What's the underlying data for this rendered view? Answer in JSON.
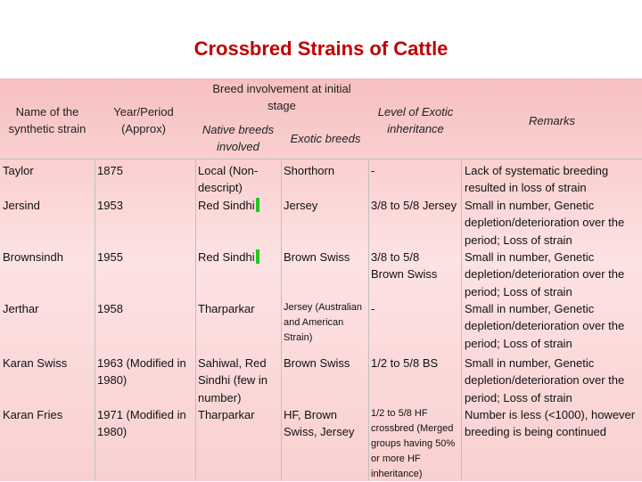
{
  "title": "Crossbred Strains of Cattle",
  "headers": {
    "name": "Name of the synthetic strain",
    "year": "Year/Period (Approx)",
    "breed_group": "Breed involvement at initial stage",
    "native": "Native breeds involved",
    "exotic": "Exotic breeds",
    "level": "Level of Exotic inheritance",
    "remarks": "Remarks"
  },
  "rows": [
    {
      "name": "Taylor",
      "year": "1875",
      "native": "Local (Non-descript)",
      "exotic": "Shorthorn",
      "level": "-",
      "remarks": "Lack of systematic breeding resulted in loss of strain"
    },
    {
      "name": "Jersind",
      "year": "1953",
      "native": "Red Sindhi",
      "exotic": "Jersey",
      "level": "3/8 to 5/8 Jersey",
      "remarks": "Small in number, Genetic depletion/deterioration over the period; Loss of strain"
    },
    {
      "name": "Brownsindh",
      "year": "1955",
      "native": "Red Sindhi",
      "exotic": "Brown Swiss",
      "level": "3/8 to 5/8 Brown Swiss",
      "remarks": "Small in number, Genetic depletion/deterioration over the period; Loss of strain"
    },
    {
      "name": "Jerthar",
      "year": "1958",
      "native": "Tharparkar",
      "exotic": "Jersey (Australian and American Strain)",
      "level": "-",
      "remarks": "Small in number, Genetic depletion/deterioration over the period; Loss of strain"
    },
    {
      "name": "Karan Swiss",
      "year": "1963 (Modified in 1980)",
      "native": "Sahiwal, Red Sindhi (few in number)",
      "exotic": "Brown Swiss",
      "level": "1/2 to 5/8 BS",
      "remarks": "Small in number, Genetic depletion/deterioration over the period; Loss of strain"
    },
    {
      "name": "Karan Fries",
      "year": "1971 (Modified in 1980)",
      "native": "Tharparkar",
      "exotic": "HF, Brown Swiss, Jersey",
      "level": "1/2 to 5/8 HF crossbred (Merged groups having 50% or more HF inheritance)",
      "remarks": "Number is less (<1000), however breeding is being continued"
    }
  ]
}
